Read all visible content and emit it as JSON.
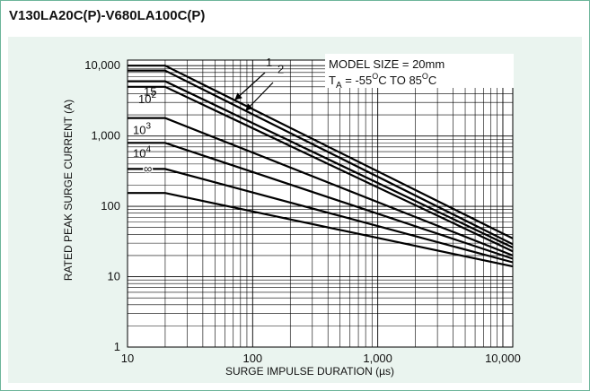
{
  "title": "V130LA20C(P)-V680LA100C(P)",
  "colors": {
    "border": "#6db59a",
    "panel_background": "#eaf4ef",
    "plot_background": "#ffffff",
    "curve_color": "#000000"
  },
  "chart_data": {
    "type": "line",
    "xscale": "log",
    "yscale": "log",
    "xlim": [
      10,
      12000
    ],
    "ylim": [
      1,
      12000
    ],
    "grid": true,
    "xlabel": "SURGE IMPULSE DURATION (µs)",
    "ylabel": "RATED PEAK SURGE CURRENT (A)",
    "xticks": [
      {
        "value": 10,
        "label": "10"
      },
      {
        "value": 100,
        "label": "100"
      },
      {
        "value": 1000,
        "label": "1,000"
      },
      {
        "value": 10000,
        "label": "10,000"
      }
    ],
    "yticks": [
      {
        "value": 1,
        "label": "1"
      },
      {
        "value": 10,
        "label": "10"
      },
      {
        "value": 100,
        "label": "100"
      },
      {
        "value": 1000,
        "label": "1,000"
      },
      {
        "value": 10000,
        "label": "10,000"
      }
    ],
    "annotations": {
      "info_line1": "MODEL SIZE = 20mm",
      "info_line2_prefix": "T",
      "info_line2_sub": "A",
      "info_line2_mid": " = -55",
      "info_line2_sup1": "O",
      "info_line2_mid2": "C TO 85",
      "info_line2_sup2": "O",
      "info_line2_end": "C"
    },
    "series": [
      {
        "label": "1",
        "x": [
          10,
          20,
          12000
        ],
        "y": [
          10000,
          10000,
          35
        ]
      },
      {
        "label": "2",
        "x": [
          10,
          20,
          12000
        ],
        "y": [
          8500,
          8500,
          29
        ]
      },
      {
        "label": "15",
        "x": [
          10,
          20,
          12000
        ],
        "y": [
          6000,
          6000,
          26
        ]
      },
      {
        "label_base": "10",
        "label_exp": "2",
        "x": [
          10,
          20,
          12000
        ],
        "y": [
          5000,
          5000,
          23
        ]
      },
      {
        "label_base": "10",
        "label_exp": "3",
        "x": [
          10,
          20,
          12000
        ],
        "y": [
          1800,
          1800,
          20
        ]
      },
      {
        "label_base": "10",
        "label_exp": "4",
        "x": [
          10,
          20,
          12000
        ],
        "y": [
          800,
          800,
          18
        ]
      },
      {
        "label": "∞",
        "x": [
          10,
          20,
          12000
        ],
        "y": [
          340,
          340,
          16
        ]
      },
      {
        "x": [
          10,
          20,
          12000
        ],
        "y": [
          155,
          155,
          14
        ]
      }
    ]
  }
}
